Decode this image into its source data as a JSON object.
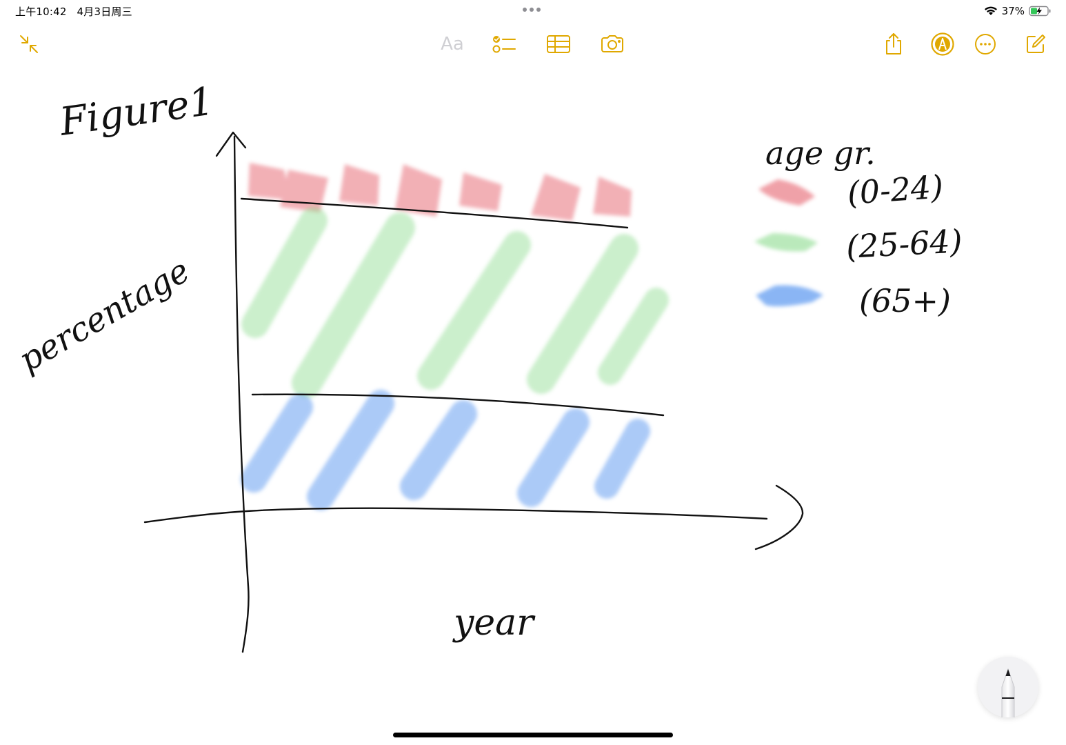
{
  "status_bar": {
    "time": "上午10:42",
    "date": "4月3日周三",
    "battery": "37%",
    "wifi_icon": "wifi-icon",
    "battery_icon": "battery-charging-icon"
  },
  "toolbar": {
    "accent_color": "#e0a800",
    "left": [
      {
        "icon": "collapse-arrows-icon"
      }
    ],
    "center": [
      {
        "label": "Aa",
        "icon": "text-format-icon"
      },
      {
        "icon": "checklist-icon"
      },
      {
        "icon": "table-icon"
      },
      {
        "icon": "camera-icon"
      }
    ],
    "right": [
      {
        "icon": "share-icon"
      },
      {
        "icon": "markup-pen-icon"
      },
      {
        "icon": "more-ellipsis-icon"
      },
      {
        "icon": "compose-icon"
      }
    ]
  },
  "note": {
    "title": "Figure1",
    "y_axis_label": "percentage",
    "x_axis_label": "year",
    "legend": {
      "title": "age gr.",
      "entries": [
        {
          "label": "(0-24)",
          "color": "#e8707a"
        },
        {
          "label": "(25-64)",
          "color": "#8ddc8f"
        },
        {
          "label": "(65+)",
          "color": "#5a97f0"
        }
      ]
    }
  },
  "pencil": {
    "icon": "apple-pencil-icon"
  }
}
